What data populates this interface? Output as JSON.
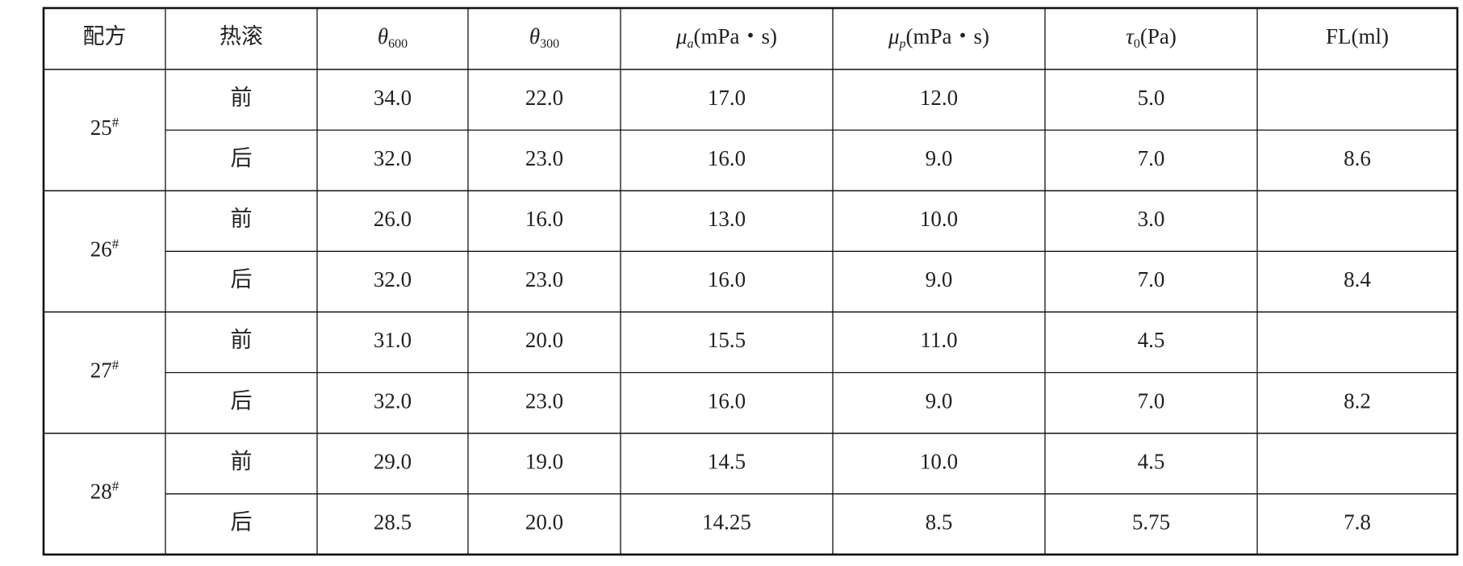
{
  "table": {
    "header": [
      {
        "text": "配方"
      },
      {
        "text": "热滚"
      },
      {
        "symbol": "θ",
        "sub": "600"
      },
      {
        "symbol": "θ",
        "sub": "300"
      },
      {
        "symbol": "μ",
        "sub": "a",
        "unit": "(mPa・s)"
      },
      {
        "symbol": "μ",
        "sub": "p",
        "unit": "(mPa・s)"
      },
      {
        "symbol": "τ",
        "sub": "0",
        "unit": "(Pa)"
      },
      {
        "text": "FL(ml)"
      }
    ],
    "groups": [
      {
        "formula": {
          "number": "25",
          "mark": "#"
        },
        "rows": [
          {
            "stage": "前",
            "values": [
              "34.0",
              "22.0",
              "17.0",
              "12.0",
              "5.0"
            ]
          },
          {
            "stage": "后",
            "values": [
              "32.0",
              "23.0",
              "16.0",
              "9.0",
              "7.0",
              "8.6"
            ]
          }
        ]
      },
      {
        "formula": {
          "number": "26",
          "mark": "#"
        },
        "rows": [
          {
            "stage": "前",
            "values": [
              "26.0",
              "16.0",
              "13.0",
              "10.0",
              "3.0"
            ]
          },
          {
            "stage": "后",
            "values": [
              "32.0",
              "23.0",
              "16.0",
              "9.0",
              "7.0",
              "8.4"
            ]
          }
        ]
      },
      {
        "formula": {
          "number": "27",
          "mark": "#"
        },
        "rows": [
          {
            "stage": "前",
            "values": [
              "31.0",
              "20.0",
              "15.5",
              "11.0",
              "4.5"
            ]
          },
          {
            "stage": "后",
            "values": [
              "32.0",
              "23.0",
              "16.0",
              "9.0",
              "7.0",
              "8.2"
            ]
          }
        ]
      },
      {
        "formula": {
          "number": "28",
          "mark": "#"
        },
        "rows": [
          {
            "stage": "前",
            "values": [
              "29.0",
              "19.0",
              "14.5",
              "10.0",
              "4.5"
            ]
          },
          {
            "stage": "后",
            "values": [
              "28.5",
              "20.0",
              "14.25",
              "8.5",
              "5.75",
              "7.8"
            ]
          }
        ]
      }
    ]
  }
}
